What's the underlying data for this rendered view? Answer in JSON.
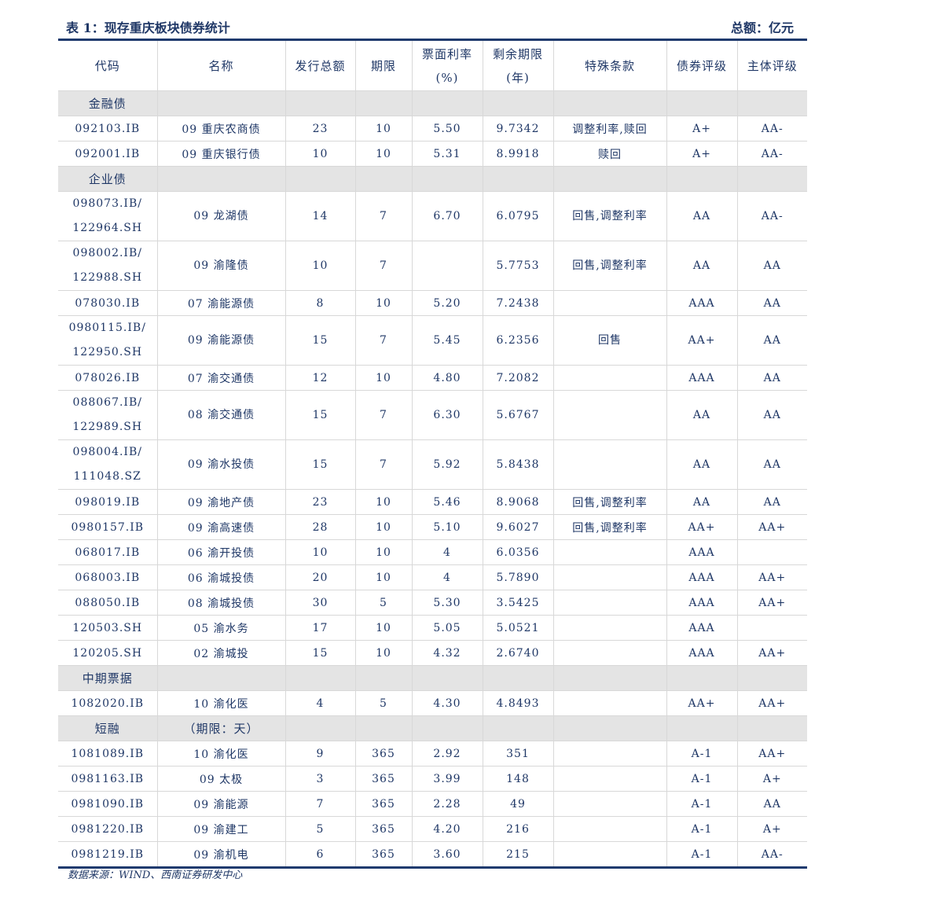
{
  "title": "表 1：现存重庆板块债券统计",
  "unit": "总额：亿元",
  "headers": [
    "代码",
    "名称",
    "发行总额",
    "期限",
    "票面利率\n(%)",
    "剩余期限\n(年)",
    "特殊条款",
    "债券评级",
    "主体评级"
  ],
  "sections": [
    {
      "label": "金融债",
      "note": "",
      "rows": [
        [
          "092103.IB",
          "09 重庆农商债",
          "23",
          "10",
          "5.50",
          "9.7342",
          "调整利率,赎回",
          "A+",
          "AA-"
        ],
        [
          "092001.IB",
          "09 重庆银行债",
          "10",
          "10",
          "5.31",
          "8.9918",
          "赎回",
          "A+",
          "AA-"
        ]
      ]
    },
    {
      "label": "企业债",
      "note": "",
      "rows": [
        [
          "098073.IB/\n122964.SH",
          "09 龙湖债",
          "14",
          "7",
          "6.70",
          "6.0795",
          "回售,调整利率",
          "AA",
          "AA-"
        ],
        [
          "098002.IB/\n122988.SH",
          "09 渝隆债",
          "10",
          "7",
          "",
          "5.7753",
          "回售,调整利率",
          "AA",
          "AA"
        ],
        [
          "078030.IB",
          "07 渝能源债",
          "8",
          "10",
          "5.20",
          "7.2438",
          "",
          "AAA",
          "AA"
        ],
        [
          "0980115.IB/\n122950.SH",
          "09 渝能源债",
          "15",
          "7",
          "5.45",
          "6.2356",
          "回售",
          "AA+",
          "AA"
        ],
        [
          "078026.IB",
          "07 渝交通债",
          "12",
          "10",
          "4.80",
          "7.2082",
          "",
          "AAA",
          "AA"
        ],
        [
          "088067.IB/\n122989.SH",
          "08 渝交通债",
          "15",
          "7",
          "6.30",
          "5.6767",
          "",
          "AA",
          "AA"
        ],
        [
          "098004.IB/\n111048.SZ",
          "09 渝水投债",
          "15",
          "7",
          "5.92",
          "5.8438",
          "",
          "AA",
          "AA"
        ],
        [
          "098019.IB",
          "09 渝地产债",
          "23",
          "10",
          "5.46",
          "8.9068",
          "回售,调整利率",
          "AA",
          "AA"
        ],
        [
          "0980157.IB",
          "09 渝高速债",
          "28",
          "10",
          "5.10",
          "9.6027",
          "回售,调整利率",
          "AA+",
          "AA+"
        ],
        [
          "068017.IB",
          "06 渝开投债",
          "10",
          "10",
          "4",
          "6.0356",
          "",
          "AAA",
          ""
        ],
        [
          "068003.IB",
          "06 渝城投债",
          "20",
          "10",
          "4",
          "5.7890",
          "",
          "AAA",
          "AA+"
        ],
        [
          "088050.IB",
          "08 渝城投债",
          "30",
          "5",
          "5.30",
          "3.5425",
          "",
          "AAA",
          "AA+"
        ],
        [
          "120503.SH",
          "05 渝水务",
          "17",
          "10",
          "5.05",
          "5.0521",
          "",
          "AAA",
          ""
        ],
        [
          "120205.SH",
          "02 渝城投",
          "15",
          "10",
          "4.32",
          "2.6740",
          "",
          "AAA",
          "AA+"
        ]
      ]
    },
    {
      "label": "中期票据",
      "note": "",
      "rows": [
        [
          "1082020.IB",
          "10 渝化医",
          "4",
          "5",
          "4.30",
          "4.8493",
          "",
          "AA+",
          "AA+"
        ]
      ]
    },
    {
      "label": "短融",
      "note": "（期限：天）",
      "rows": [
        [
          "1081089.IB",
          "10 渝化医",
          "9",
          "365",
          "2.92",
          "351",
          "",
          "A-1",
          "AA+"
        ],
        [
          "0981163.IB",
          "09 太极",
          "3",
          "365",
          "3.99",
          "148",
          "",
          "A-1",
          "A+"
        ],
        [
          "0981090.IB",
          "09 渝能源",
          "7",
          "365",
          "2.28",
          "49",
          "",
          "A-1",
          "AA"
        ],
        [
          "0981220.IB",
          "09 渝建工",
          "5",
          "365",
          "4.20",
          "216",
          "",
          "A-1",
          "A+"
        ],
        [
          "0981219.IB",
          "09 渝机电",
          "6",
          "365",
          "3.60",
          "215",
          "",
          "A-1",
          "AA-"
        ]
      ]
    }
  ],
  "source": "数据来源：WIND、西南证券研发中心"
}
